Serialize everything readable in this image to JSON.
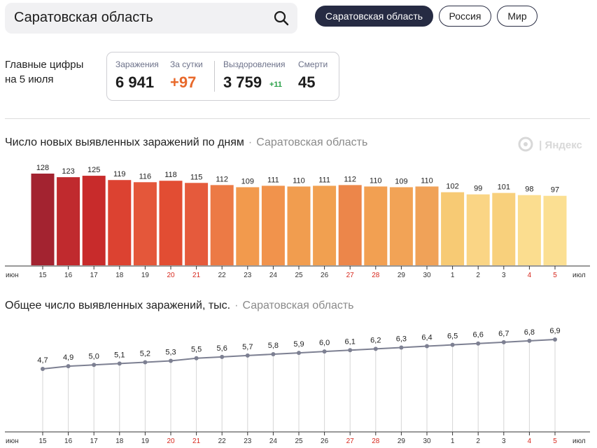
{
  "search": {
    "query": "Саратовская область"
  },
  "tabs": [
    {
      "label": "Саратовская область",
      "active": true
    },
    {
      "label": "Россия",
      "active": false
    },
    {
      "label": "Мир",
      "active": false
    }
  ],
  "headline": {
    "line1": "Главные цифры",
    "line2": "на 5 июля"
  },
  "stats": {
    "infections_label": "Заражения",
    "infections_value": "6 941",
    "daily_label": "За сутки",
    "daily_value": "+97",
    "recovered_label": "Выздоровления",
    "recovered_value": "3 759",
    "recovered_extra": "+11",
    "deaths_label": "Смерти",
    "deaths_value": "45"
  },
  "watermark": "Яндекс",
  "colors": {
    "accent_orange": "#e8692b",
    "recovered_green": "#2aa148",
    "weekend_red": "#d7281d",
    "line_gray": "#7d8092"
  },
  "chart_data": [
    {
      "type": "bar",
      "title": "Число новых выявленных заражений по дням",
      "subtitle": "Саратовская область",
      "x_start_label": "июн",
      "x_end_label": "июл",
      "categories": [
        "15",
        "16",
        "17",
        "18",
        "19",
        "20",
        "21",
        "22",
        "23",
        "24",
        "25",
        "26",
        "27",
        "28",
        "29",
        "30",
        "1",
        "2",
        "3",
        "4",
        "5"
      ],
      "weekend": [
        false,
        false,
        false,
        false,
        false,
        true,
        true,
        false,
        false,
        false,
        false,
        false,
        true,
        true,
        false,
        false,
        false,
        false,
        false,
        true,
        true
      ],
      "values": [
        128,
        123,
        125,
        119,
        116,
        118,
        115,
        112,
        109,
        111,
        110,
        111,
        112,
        110,
        109,
        110,
        102,
        99,
        101,
        98,
        97
      ],
      "bar_colors": [
        "#a32330",
        "#c02a2e",
        "#c82b2b",
        "#dc4231",
        "#e4573a",
        "#e24d33",
        "#e55a3c",
        "#ec7a45",
        "#f29a4d",
        "#f1934c",
        "#f19d4f",
        "#f1a050",
        "#ec864a",
        "#f2a052",
        "#f2a356",
        "#f0a258",
        "#f7ca74",
        "#fad585",
        "#f8d07c",
        "#fbdd8f",
        "#fbdf92"
      ],
      "ylim": [
        0,
        135
      ]
    },
    {
      "type": "line",
      "title": "Общее число выявленных заражений, тыс.",
      "subtitle": "Саратовская область",
      "x_start_label": "июн",
      "x_end_label": "июл",
      "categories": [
        "15",
        "16",
        "17",
        "18",
        "19",
        "20",
        "21",
        "22",
        "23",
        "24",
        "25",
        "26",
        "27",
        "28",
        "29",
        "30",
        "1",
        "2",
        "3",
        "4",
        "5"
      ],
      "weekend": [
        false,
        false,
        false,
        false,
        false,
        true,
        true,
        false,
        false,
        false,
        false,
        false,
        true,
        true,
        false,
        false,
        false,
        false,
        false,
        true,
        true
      ],
      "values": [
        4.7,
        4.9,
        5.0,
        5.1,
        5.2,
        5.3,
        5.5,
        5.6,
        5.7,
        5.8,
        5.9,
        6.0,
        6.1,
        6.2,
        6.3,
        6.4,
        6.5,
        6.6,
        6.7,
        6.8,
        6.9
      ],
      "value_labels": [
        "4,7",
        "4,9",
        "5,0",
        "5,1",
        "5,2",
        "5,3",
        "5,5",
        "5,6",
        "5,7",
        "5,8",
        "5,9",
        "6,0",
        "6,1",
        "6,2",
        "6,3",
        "6,4",
        "6,5",
        "6,6",
        "6,7",
        "6,8",
        "6,9"
      ]
    }
  ]
}
